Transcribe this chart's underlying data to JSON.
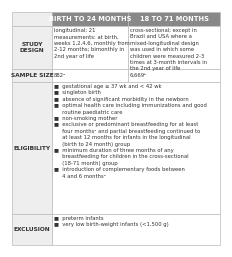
{
  "header_bg": "#888888",
  "header_text_color": "#ffffff",
  "header_fontsize": 4.8,
  "cell_fontsize": 3.8,
  "label_fontsize": 4.2,
  "col1_header": "BIRTH TO 24 MONTHS",
  "col2_header": "18 TO 71 MONTHS",
  "row_labels": [
    "STUDY\nDESIGN",
    "SAMPLE SIZE",
    "ELIGIBILITY",
    "EXCLUSION"
  ],
  "col1_data": [
    "longitudinal; 21\nmeasurements: at birth,\nweeks 1,2,4,6, monthly from\n2-12 months; bimonthly in\n2nd year of life",
    "882ᵃ",
    "■  gestational age ≥ 37 wk and < 42 wk\n■  singleton birth\n■  absence of significant morbidity in the newborn\n■  optimal health care including immunizations and good\n     routine paediatric care\n■  non-smoking mother\n■  exclusive or predominant breastfeeding for at least\n     four monthsᵃ and partial breastfeeding continued to\n     at least 12 months for infants in the longitudinal\n     (birth to 24 month) group\n■  minimum duration of three months of any\n     breastfeeding for children in the cross-sectional\n     (18-71 month) group\n■  introduction of complementary foods between\n     4 and 6 monthsᵃ",
    "■  preterm infants\n■  very low birth-weight infants (<1,500 g)"
  ],
  "col2_data": [
    "cross-sectional; except in\nBrazil and USA where a\nmixed-longitudinal design\nwas used in which some\nchildren were measured 2-3\ntimes at 3-month intervals in\nthe 2nd year of life",
    "6,669ᵇ",
    "",
    ""
  ],
  "bg_color": "#ffffff",
  "border_color": "#bbbbbb",
  "label_bg": "#eeeeee"
}
